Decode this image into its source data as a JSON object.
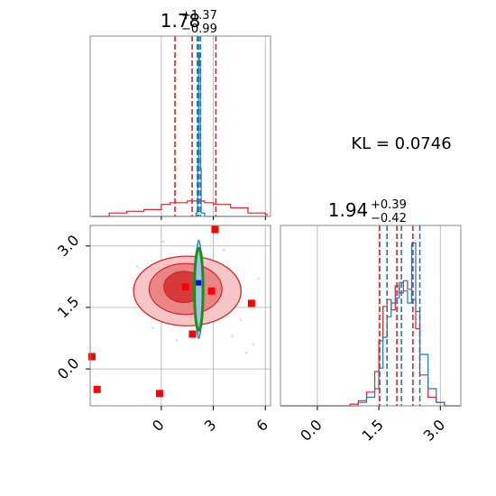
{
  "chart_data": [
    {
      "panel": "top-left",
      "type": "line",
      "title": {
        "value": "1.78",
        "plus": "+1.37",
        "minus": "−0.99"
      },
      "xlim": [
        -4.1,
        6.3
      ],
      "xgrid": [
        0,
        3,
        6
      ],
      "x": [
        -4.0,
        -3.0,
        -2.0,
        -1.0,
        0.0,
        0.5,
        1.0,
        1.5,
        2.0,
        2.1,
        2.15,
        2.2,
        2.25,
        2.3,
        2.5,
        3.0,
        4.0,
        5.0,
        6.0
      ],
      "series": [
        {
          "color": "#d62728",
          "values": [
            0.0,
            0.02,
            0.03,
            0.04,
            0.07,
            0.08,
            0.08,
            0.09,
            0.09,
            0.09,
            0.09,
            0.09,
            0.09,
            0.09,
            0.08,
            0.07,
            0.05,
            0.02,
            0.01
          ]
        },
        {
          "color": "#1f77b4",
          "values": [
            0.0,
            0.0,
            0.0,
            0.0,
            0.0,
            0.0,
            0.0,
            0.0,
            0.02,
            0.3,
            0.95,
            0.88,
            0.28,
            0.02,
            0.0,
            0.0,
            0.0,
            0.0,
            0.0
          ]
        }
      ],
      "vlines_red": [
        0.79,
        1.78,
        3.15
      ],
      "vlines_blue": [
        2.08,
        2.16,
        2.26
      ]
    },
    {
      "panel": "bottom-left",
      "type": "scatter",
      "xlim": [
        -4.1,
        6.3
      ],
      "ylim": [
        -0.9,
        3.5
      ],
      "xticks": [
        0,
        3,
        6
      ],
      "xticklabels": [
        "0",
        "3",
        "6"
      ],
      "yticks": [
        0.0,
        1.5,
        3.0
      ],
      "yticklabels": [
        "0.0",
        "1.5",
        "3.0"
      ],
      "grid": true,
      "outlier_markers": [
        {
          "x": -4.0,
          "y": 0.3
        },
        {
          "x": -3.7,
          "y": -0.5
        },
        {
          "x": -0.1,
          "y": -0.6
        },
        {
          "x": 1.4,
          "y": 2.0
        },
        {
          "x": 1.8,
          "y": 0.85
        },
        {
          "x": 2.9,
          "y": 1.9
        },
        {
          "x": 5.2,
          "y": 1.6
        },
        {
          "x": 3.1,
          "y": 3.4
        }
      ],
      "blue_marker": {
        "x": 2.15,
        "y": 2.1
      },
      "red_contours": [
        {
          "cx": 1.5,
          "cy": 1.9,
          "rx": 3.1,
          "ry": 0.85
        },
        {
          "cx": 1.4,
          "cy": 1.95,
          "rx": 2.1,
          "ry": 0.62
        },
        {
          "cx": 1.3,
          "cy": 2.0,
          "rx": 1.15,
          "ry": 0.38
        }
      ],
      "blue_contour": {
        "cx": 2.16,
        "cy": 1.94,
        "rx": 0.2,
        "ry": 1.2
      },
      "green_ellipse": {
        "cx": 2.16,
        "cy": 1.94,
        "rx": 0.25,
        "ry": 1.0
      }
    },
    {
      "panel": "bottom-right",
      "type": "line",
      "title": {
        "value": "1.94",
        "plus": "+0.39",
        "minus": "−0.42"
      },
      "xlim": [
        -0.9,
        3.5
      ],
      "xticks": [
        0.0,
        1.5,
        3.0
      ],
      "xticklabels": [
        "0.0",
        "1.5",
        "3.0"
      ],
      "x": [
        0.8,
        1.0,
        1.2,
        1.4,
        1.5,
        1.6,
        1.7,
        1.8,
        1.9,
        2.0,
        2.1,
        2.2,
        2.3,
        2.4,
        2.5,
        2.7,
        2.9,
        3.1
      ],
      "series": [
        {
          "color": "#d62728",
          "values": [
            0.01,
            0.03,
            0.08,
            0.2,
            0.38,
            0.58,
            0.62,
            0.56,
            0.7,
            0.66,
            0.73,
            0.68,
            0.62,
            0.45,
            0.18,
            0.05,
            0.02,
            0.0
          ]
        },
        {
          "color": "#1f77b4",
          "values": [
            0.0,
            0.02,
            0.05,
            0.1,
            0.22,
            0.4,
            0.52,
            0.6,
            0.63,
            0.72,
            0.67,
            0.6,
            0.95,
            0.55,
            0.3,
            0.1,
            0.02,
            0.0
          ]
        }
      ],
      "vlines_red": [
        1.52,
        1.94,
        2.33
      ],
      "vlines_blue": [
        1.7,
        2.05,
        2.5
      ]
    }
  ],
  "annotation": "KL = 0.0746"
}
